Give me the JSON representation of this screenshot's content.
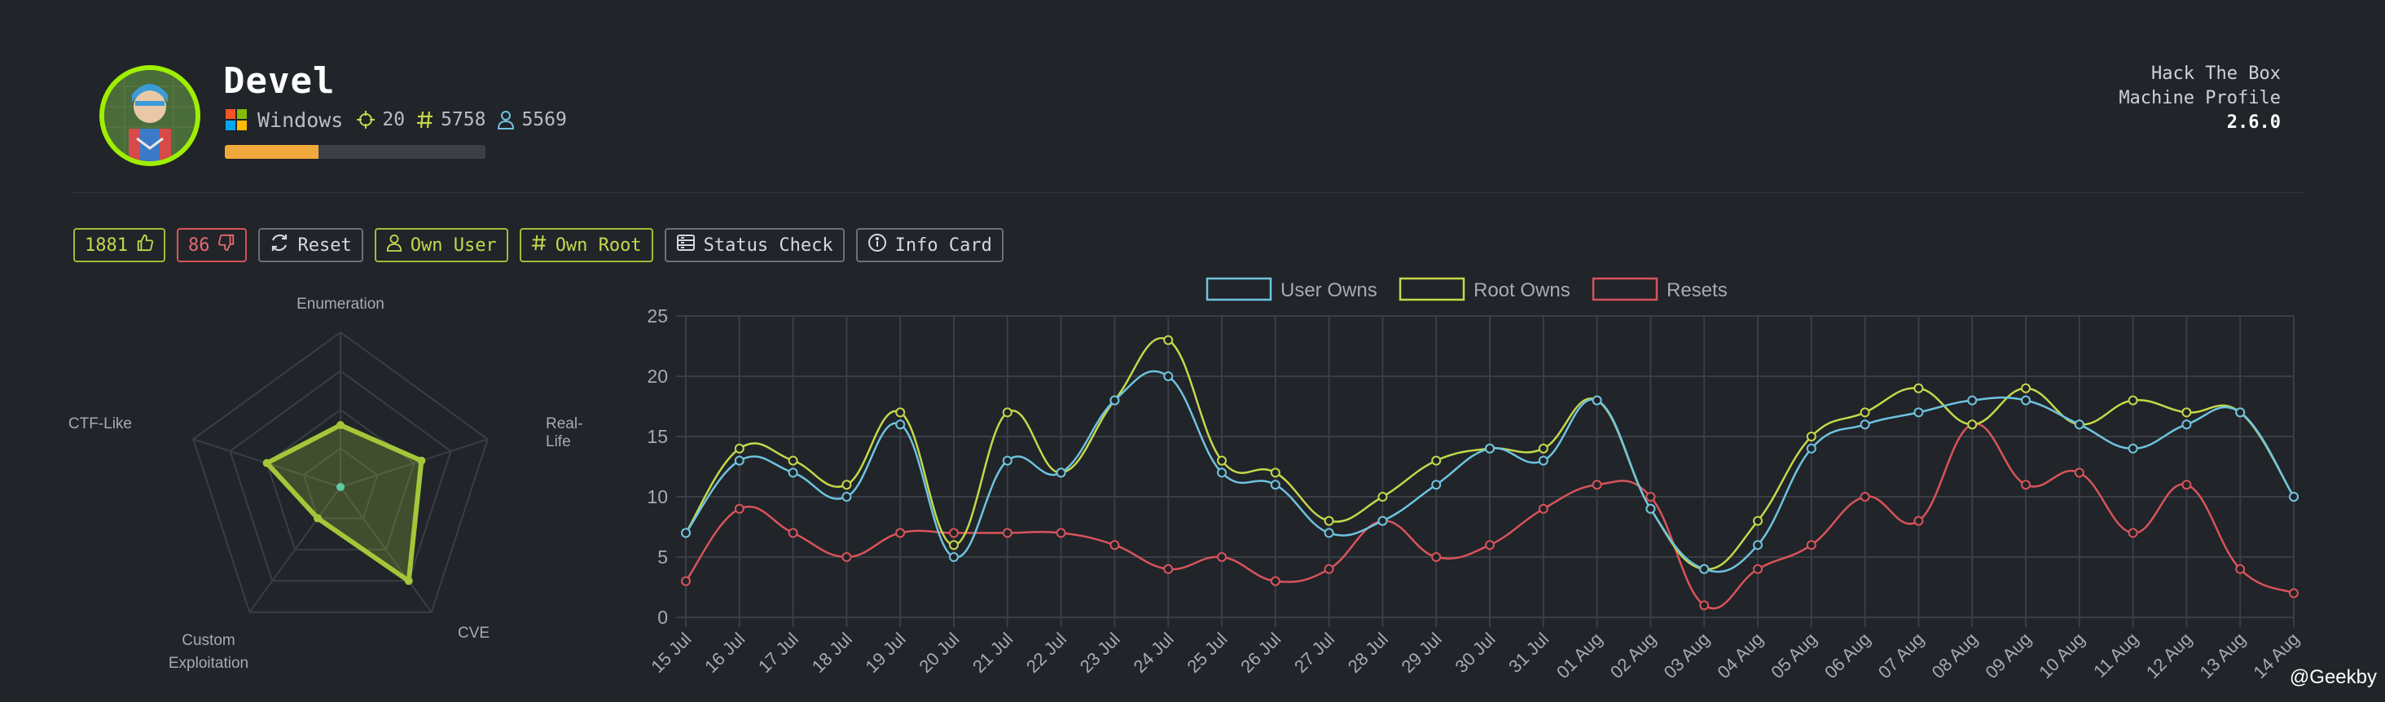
{
  "machine": {
    "name": "Devel",
    "os": "Windows",
    "points": "20",
    "root_owns": "5758",
    "user_owns": "5569",
    "difficulty_progress": 0.36
  },
  "side_info": {
    "line1": "Hack The Box",
    "line2": "Machine Profile",
    "version": "2.6.0"
  },
  "actions": {
    "likes": "1881",
    "dislikes": "86",
    "reset": "Reset",
    "own_user": "Own User",
    "own_root": "Own Root",
    "status_check": "Status Check",
    "info_card": "Info Card"
  },
  "colors": {
    "background": "#212429",
    "accent_green": "#9fef00",
    "user_series": "#6ec3df",
    "root_series": "#c4d84a",
    "reset_series": "#d7545a",
    "radar": "#a4c639",
    "progress": "#f2a93b"
  },
  "radar": {
    "axes": [
      "Enumeration",
      "Real-Life",
      "CVE",
      "Custom Exploitation",
      "CTF-Like"
    ],
    "values": [
      0.4,
      0.55,
      0.75,
      0.25,
      0.5
    ],
    "max": 1
  },
  "chart_data": {
    "type": "line",
    "x": [
      "15 Jul",
      "16 Jul",
      "17 Jul",
      "18 Jul",
      "19 Jul",
      "20 Jul",
      "21 Jul",
      "22 Jul",
      "23 Jul",
      "24 Jul",
      "25 Jul",
      "26 Jul",
      "27 Jul",
      "28 Jul",
      "29 Jul",
      "30 Jul",
      "31 Jul",
      "01 Aug",
      "02 Aug",
      "03 Aug",
      "04 Aug",
      "05 Aug",
      "06 Aug",
      "07 Aug",
      "08 Aug",
      "09 Aug",
      "10 Aug",
      "11 Aug",
      "12 Aug",
      "13 Aug",
      "14 Aug"
    ],
    "series": [
      {
        "name": "User Owns",
        "color": "#6ec3df",
        "values": [
          7,
          13,
          12,
          10,
          16,
          5,
          13,
          12,
          18,
          20,
          12,
          11,
          7,
          8,
          11,
          14,
          13,
          18,
          9,
          4,
          6,
          14,
          16,
          17,
          18,
          18,
          16,
          14,
          16,
          17,
          10
        ]
      },
      {
        "name": "Root Owns",
        "color": "#c4d84a",
        "values": [
          7,
          14,
          13,
          11,
          17,
          6,
          17,
          12,
          18,
          23,
          13,
          12,
          8,
          10,
          13,
          14,
          14,
          18,
          9,
          4,
          8,
          15,
          17,
          19,
          16,
          19,
          16,
          18,
          17,
          17,
          10
        ]
      },
      {
        "name": "Resets",
        "color": "#d7545a",
        "values": [
          3,
          9,
          7,
          5,
          7,
          7,
          7,
          7,
          6,
          4,
          5,
          3,
          4,
          8,
          5,
          6,
          9,
          11,
          10,
          1,
          4,
          6,
          10,
          8,
          16,
          11,
          12,
          7,
          11,
          4,
          2
        ]
      }
    ],
    "yticks": [
      "0",
      "5",
      "10",
      "15",
      "20",
      "25"
    ],
    "ylim": [
      0,
      25
    ],
    "grid": true,
    "legend": "top-center"
  },
  "watermark": "@Geekby"
}
